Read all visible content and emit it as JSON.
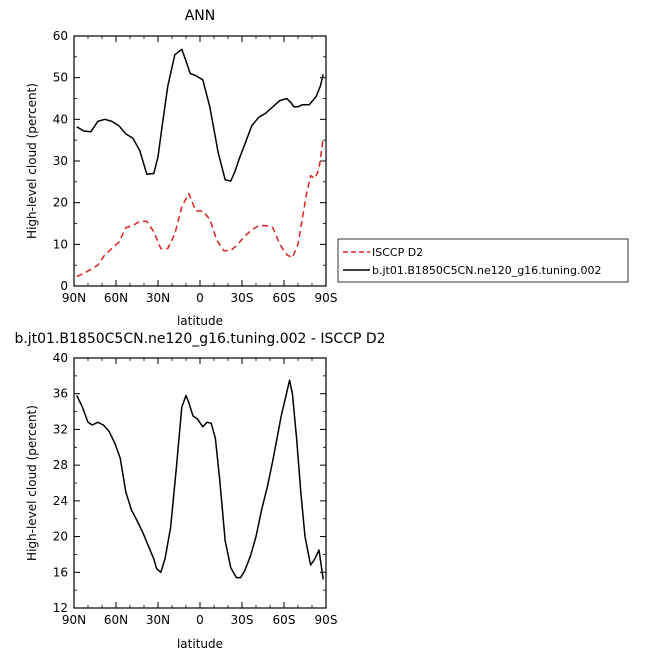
{
  "chart_data": [
    {
      "type": "line",
      "title": "ANN",
      "xlabel": "latitude",
      "ylabel": "High-level cloud (percent)",
      "xlim": [
        90,
        -90
      ],
      "ylim": [
        0,
        60
      ],
      "x_ticks": [
        90,
        60,
        30,
        0,
        -30,
        -60,
        -90
      ],
      "x_tick_labels": [
        "90N",
        "60N",
        "30N",
        "0",
        "30S",
        "60S",
        "90S"
      ],
      "y_ticks": [
        0,
        10,
        20,
        30,
        40,
        50,
        60
      ],
      "y_tick_labels": [
        "0",
        "10",
        "20",
        "30",
        "40",
        "50",
        "60"
      ],
      "grid": false,
      "legend": "right",
      "series": [
        {
          "name": "ISCCP D2",
          "color": "#e02020",
          "dash": "dashed",
          "x": [
            88,
            83,
            78,
            73,
            68,
            63,
            58,
            53,
            48,
            43,
            38,
            33,
            28,
            23,
            18,
            13,
            8,
            3,
            -2,
            -7,
            -12,
            -17,
            -22,
            -27,
            -32,
            -37,
            -42,
            -47,
            -52,
            -57,
            -62,
            -66,
            -70,
            -73,
            -76,
            -79,
            -82,
            -85,
            -88
          ],
          "values": [
            2.3,
            3.0,
            4.0,
            5.0,
            7.5,
            9.0,
            10.5,
            14.0,
            14.5,
            15.5,
            15.5,
            13.0,
            9.0,
            9.0,
            12.5,
            19.0,
            22.2,
            18.0,
            18.0,
            16.0,
            11.0,
            8.5,
            8.5,
            10.0,
            12.0,
            13.5,
            14.5,
            14.5,
            14.0,
            10.0,
            7.5,
            6.8,
            10.0,
            16.0,
            22.0,
            26.5,
            25.8,
            28.0,
            35.5
          ]
        },
        {
          "name": "b.jt01.B1850C5CN.ne120_g16.tuning.002",
          "color": "#000000",
          "dash": "solid",
          "x": [
            88,
            83,
            78,
            73,
            68,
            63,
            58,
            53,
            48,
            43,
            38,
            33,
            30,
            27,
            23,
            18,
            13,
            10,
            7,
            3,
            -2,
            -7,
            -10,
            -13,
            -18,
            -22,
            -25,
            -28,
            -32,
            -37,
            -42,
            -47,
            -52,
            -57,
            -62,
            -65,
            -67,
            -70,
            -73,
            -78,
            -83,
            -86,
            -88
          ],
          "values": [
            38.2,
            37.2,
            37.0,
            39.5,
            40.0,
            39.5,
            38.5,
            36.5,
            35.5,
            32.5,
            26.8,
            27.0,
            31.0,
            38.5,
            48.0,
            55.5,
            56.8,
            54.0,
            51.0,
            50.5,
            49.5,
            43.0,
            37.5,
            32.0,
            25.5,
            25.2,
            27.5,
            30.5,
            34.0,
            38.5,
            40.5,
            41.5,
            43.0,
            44.5,
            45.0,
            44.0,
            43.0,
            43.0,
            43.5,
            43.5,
            45.5,
            48.0,
            50.8
          ]
        }
      ]
    },
    {
      "type": "line",
      "title": "b.jt01.B1850C5CN.ne120_g16.tuning.002 - ISCCP D2",
      "xlabel": "latitude",
      "ylabel": "High-level cloud (percent)",
      "xlim": [
        90,
        -90
      ],
      "ylim": [
        12,
        40
      ],
      "x_ticks": [
        90,
        60,
        30,
        0,
        -30,
        -60,
        -90
      ],
      "x_tick_labels": [
        "90N",
        "60N",
        "30N",
        "0",
        "30S",
        "60S",
        "90S"
      ],
      "y_ticks": [
        12,
        16,
        20,
        24,
        28,
        32,
        36,
        40
      ],
      "y_tick_labels": [
        "12",
        "16",
        "20",
        "24",
        "28",
        "32",
        "36",
        "40"
      ],
      "grid": false,
      "series": [
        {
          "color": "#000000",
          "dash": "solid",
          "x": [
            88,
            84,
            80,
            77,
            73,
            69,
            65,
            61,
            57,
            53,
            49,
            45,
            41,
            37,
            33,
            31,
            28,
            25,
            21,
            17,
            13,
            10,
            8,
            5,
            2,
            -2,
            -5,
            -8,
            -11,
            -14,
            -18,
            -22,
            -26,
            -29,
            -32,
            -36,
            -40,
            -44,
            -48,
            -52,
            -55,
            -58,
            -61,
            -64,
            -66,
            -69,
            -72,
            -75,
            -79,
            -82,
            -85,
            -88
          ],
          "values": [
            35.8,
            34.5,
            32.8,
            32.5,
            32.8,
            32.5,
            31.8,
            30.5,
            28.8,
            25.0,
            23.0,
            21.8,
            20.5,
            19.0,
            17.5,
            16.4,
            16.0,
            17.5,
            21.0,
            27.5,
            34.5,
            35.8,
            35.0,
            33.5,
            33.2,
            32.3,
            32.8,
            32.7,
            31.0,
            26.5,
            19.5,
            16.5,
            15.4,
            15.4,
            16.2,
            17.8,
            20.0,
            23.0,
            25.5,
            28.5,
            31.0,
            33.5,
            35.5,
            37.5,
            36.0,
            31.0,
            25.0,
            20.0,
            16.8,
            17.5,
            18.5,
            15.2
          ]
        }
      ]
    }
  ]
}
